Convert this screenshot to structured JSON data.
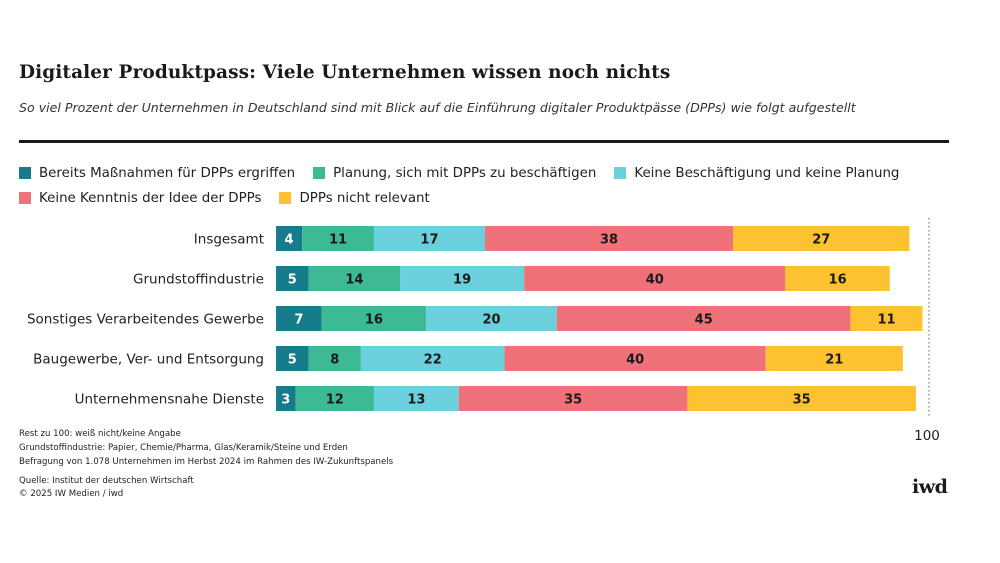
{
  "header": {
    "title": "Digitaler Produktpass: Viele Unternehmen wissen noch nichts",
    "subtitle": "So viel Prozent der Unternehmen in Deutschland sind mit Blick auf die Einführung digitaler Produktpässe (DPPs) wie folgt aufgestellt"
  },
  "chart_data": {
    "type": "bar",
    "orientation": "horizontal",
    "stacked": true,
    "categories": [
      "Insgesamt",
      "Grundstoffindustrie",
      "Sonstiges Verarbeitendes Gewerbe",
      "Baugewerbe, Ver- und Entsorgung",
      "Unternehmensnahe Dienste"
    ],
    "series": [
      {
        "name": "Bereits Maßnahmen für DPPs ergriffen",
        "color": "#167c8c",
        "values": [
          4,
          5,
          7,
          5,
          3
        ]
      },
      {
        "name": "Planung, sich mit DPPs zu beschäftigen",
        "color": "#3db995",
        "values": [
          11,
          14,
          16,
          8,
          12
        ]
      },
      {
        "name": "Keine Beschäftigung und keine Planung",
        "color": "#6ccfdc",
        "values": [
          17,
          19,
          20,
          22,
          13
        ]
      },
      {
        "name": "Keine Kenntnis der Idee der DPPs",
        "color": "#ef727b",
        "values": [
          38,
          40,
          45,
          40,
          35
        ]
      },
      {
        "name": "DPPs nicht relevant",
        "color": "#fcc230",
        "values": [
          27,
          16,
          11,
          21,
          35
        ]
      }
    ],
    "xlim": [
      0,
      100
    ],
    "reference_line": 100,
    "reference_label": "100",
    "legend_position": "top",
    "grid": false
  },
  "footnotes": [
    "Rest zu 100: weiß nicht/keine Angabe",
    "Grundstoffindustrie: Papier, Chemie/Pharma, Glas/Keramik/Steine und Erden",
    "Befragung von 1.078 Unternehmen im Herbst 2024 im Rahmen des IW-Zukunftspanels"
  ],
  "source": {
    "line1": "Quelle: Institut der deutschen Wirtschaft",
    "line2": "© 2025 IW Medien / iwd"
  },
  "logo": "iwd"
}
